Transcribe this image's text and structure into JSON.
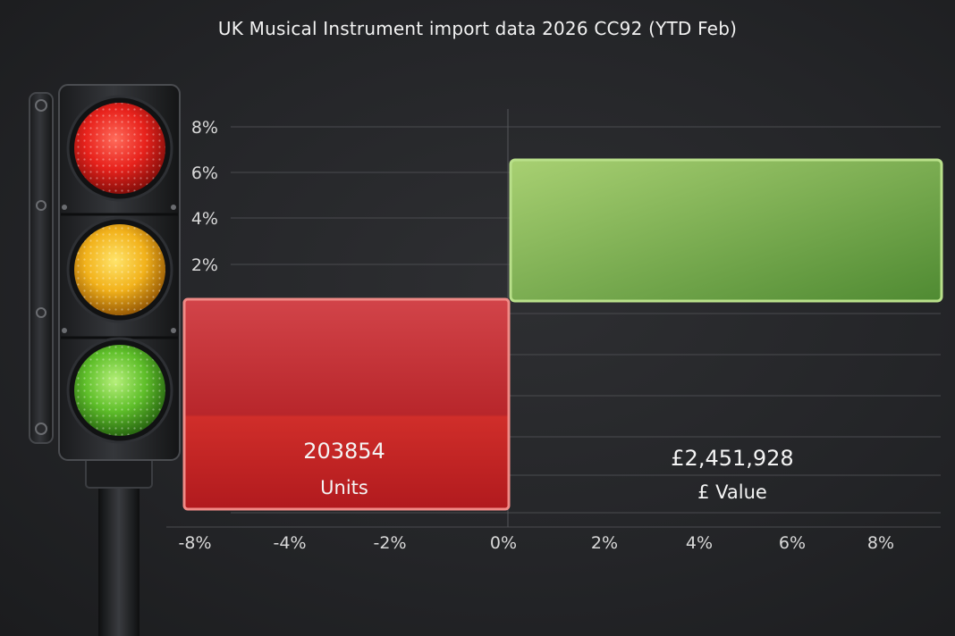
{
  "title": "UK Musical Instrument import data 2026 CC92 (YTD Feb)",
  "chart_data": {
    "type": "bar",
    "title": "UK Musical Instrument import data 2026 CC92 (YTD Feb)",
    "xlim": [
      -8,
      8
    ],
    "ylim": [
      0,
      8
    ],
    "x_tick_labels": [
      "-8%",
      "-4%",
      "-2%",
      "0%",
      "2%",
      "4%",
      "6%",
      "8%"
    ],
    "y_tick_labels": [
      "8%",
      "6%",
      "4%",
      "2%"
    ],
    "series": [
      {
        "value_label": "203854",
        "category_label": "Units",
        "change_pct_range": [
          -8,
          0
        ],
        "color": "#c8282c",
        "status": "red"
      },
      {
        "value_label": "£2,451,928",
        "category_label": "£ Value",
        "change_pct_range": [
          0,
          8
        ],
        "top_pct": 6.5,
        "color": "#7fb04a",
        "status": "green"
      }
    ],
    "grid": true,
    "traffic_light": {
      "lamps": [
        "red",
        "amber",
        "green"
      ],
      "colors": [
        "#e8221c",
        "#f2b21b",
        "#5fbf2a"
      ]
    }
  }
}
